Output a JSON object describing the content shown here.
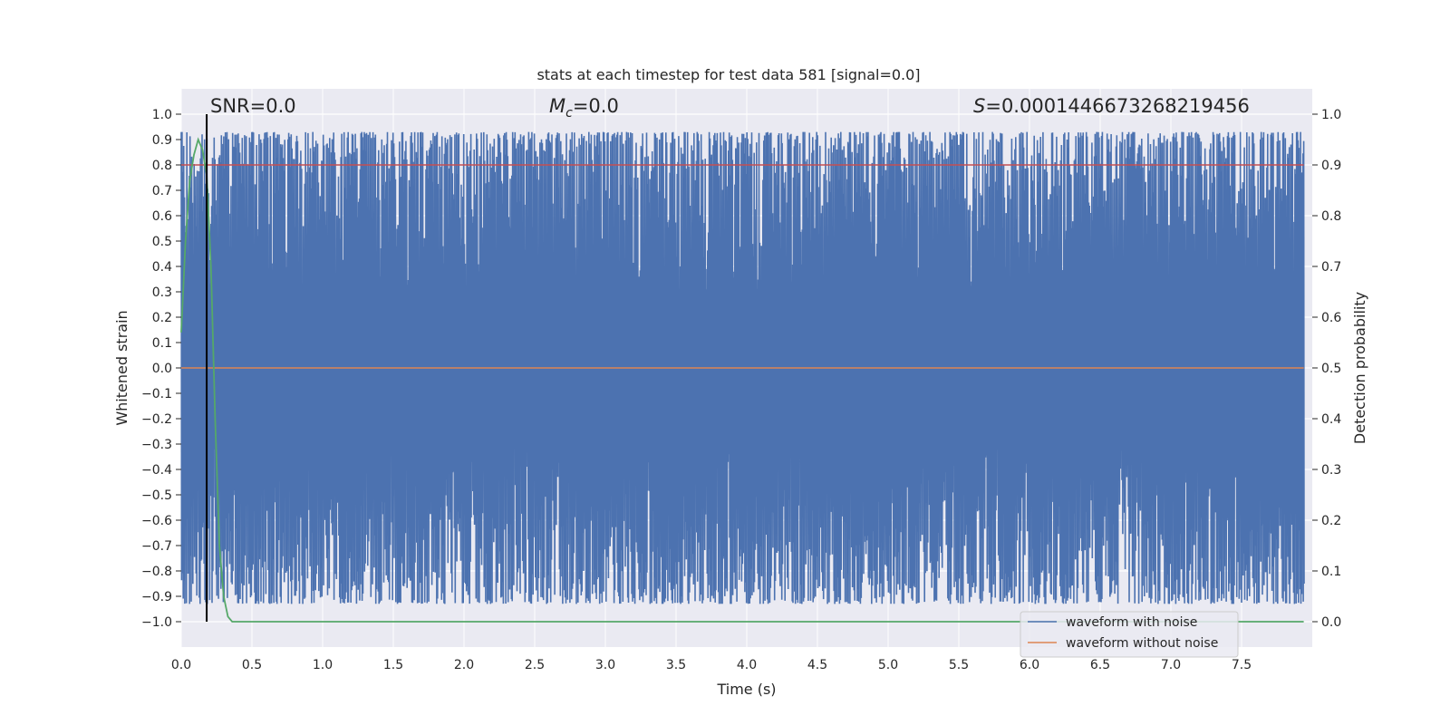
{
  "chart_data": {
    "type": "line",
    "title": "stats at each timestep for test data 581 [signal=0.0]",
    "xlabel": "Time (s)",
    "ylabel_left": "Whitened strain",
    "ylabel_right": "Detection probability",
    "xlim": [
      0.0,
      8.0
    ],
    "ylim_left": [
      -1.1,
      1.1
    ],
    "ylim_right": [
      -0.05,
      1.05
    ],
    "x_ticks": [
      "0.0",
      "0.5",
      "1.0",
      "1.5",
      "2.0",
      "2.5",
      "3.0",
      "3.5",
      "4.0",
      "4.5",
      "5.0",
      "5.5",
      "6.0",
      "6.5",
      "7.0",
      "7.5"
    ],
    "y_ticks_left": [
      "1.0",
      "0.9",
      "0.8",
      "0.7",
      "0.6",
      "0.5",
      "0.4",
      "0.3",
      "0.2",
      "0.1",
      "0.0",
      "−0.1",
      "−0.2",
      "−0.3",
      "−0.4",
      "−0.5",
      "−0.6",
      "−0.7",
      "−0.8",
      "−0.9",
      "−1.0"
    ],
    "y_ticks_right": [
      "1.0",
      "0.9",
      "0.8",
      "0.7",
      "0.6",
      "0.5",
      "0.4",
      "0.3",
      "0.2",
      "0.1",
      "0.0"
    ],
    "grid": true,
    "legend_placement": "lower-right",
    "annotations": {
      "snr": "SNR=0.0",
      "mc_symbol": "M",
      "mc_sub": "c",
      "mc_value": "=0.0",
      "s_symbol": "S",
      "s_value": "=0.0001446673268219456"
    },
    "vline_x": 0.18,
    "threshold_prob": 0.9,
    "series": [
      {
        "name": "waveform with noise",
        "color": "#4c72b0",
        "description_range": [
          -1.0,
          1.0
        ]
      },
      {
        "name": "waveform without noise",
        "color": "#dd8452",
        "values_constant": 0.0
      },
      {
        "color": "#55a868",
        "axis": "right",
        "x": [
          0.0,
          0.03,
          0.06,
          0.09,
          0.12,
          0.15,
          0.18,
          0.21,
          0.24,
          0.27,
          0.3,
          0.33,
          0.36,
          0.4,
          8.0
        ],
        "y": [
          0.57,
          0.75,
          0.87,
          0.92,
          0.95,
          0.93,
          0.88,
          0.7,
          0.4,
          0.15,
          0.05,
          0.01,
          0.0,
          0.0,
          0.0
        ]
      }
    ],
    "colors": {
      "background": "#eaeaf2",
      "grid": "#ffffff",
      "threshold": "#c44e52",
      "vline": "#000000"
    }
  }
}
